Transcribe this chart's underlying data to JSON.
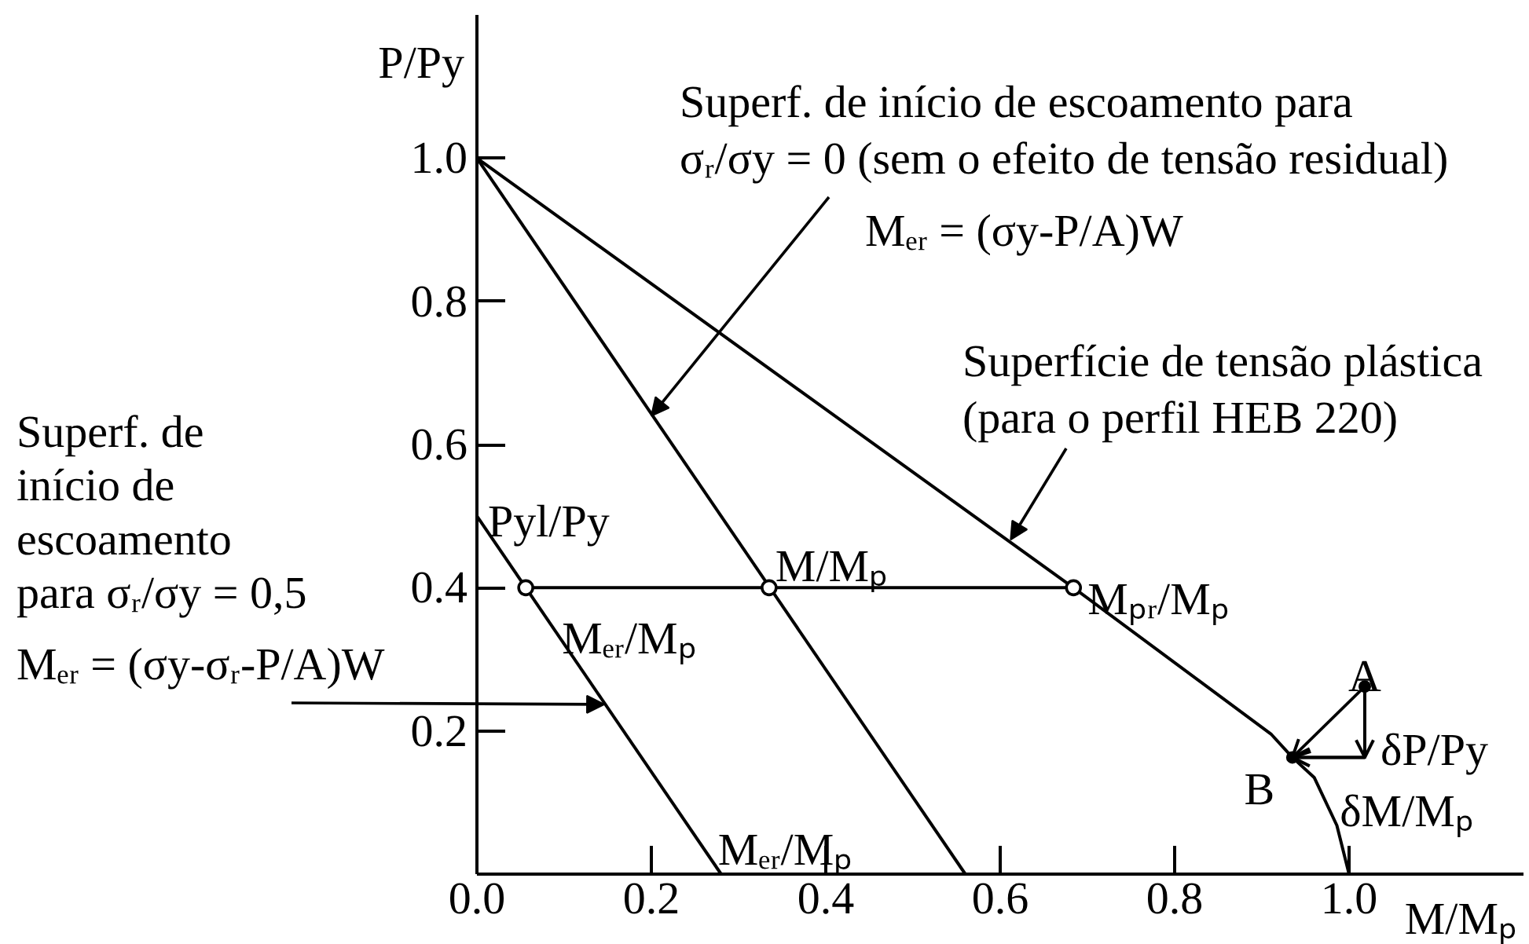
{
  "chart_data": {
    "type": "line",
    "xlabel": "M/Mₚ",
    "ylabel": "P/Py",
    "xlim": [
      0,
      1.2
    ],
    "ylim": [
      0,
      1.2
    ],
    "xticks": [
      {
        "value": 0,
        "label": "0.0"
      },
      0.2,
      0.4,
      0.6,
      0.8,
      {
        "value": 1,
        "label": "1.0"
      }
    ],
    "yticks": [
      0.2,
      0.4,
      0.6,
      0.8,
      {
        "value": 1,
        "label": "1.0"
      }
    ],
    "series": [
      {
        "color": "#000000",
        "x": [
          0,
          0.28
        ],
        "values": [
          0.5,
          0
        ]
      },
      {
        "color": "#000000",
        "x": [
          0,
          0.56
        ],
        "values": [
          1,
          0
        ]
      },
      {
        "color": "#000000",
        "x": [
          0,
          0.684,
          0.911,
          0.935,
          0.96,
          0.986,
          1.0
        ],
        "values": [
          1,
          0.4,
          0.195,
          0.163,
          0.135,
          0.068,
          0
        ]
      },
      {
        "color": "#000000",
        "x": [
          0.056,
          0.335,
          0.684
        ],
        "values": [
          0.4,
          0.4,
          0.4
        ],
        "marker": "circle"
      },
      {
        "color": "#000000",
        "x": [
          1.018,
          1.018,
          0.935
        ],
        "values": [
          0.262,
          0.163,
          0.163
        ]
      },
      {
        "type": "scatter",
        "color": "#000000",
        "x": [
          1.018,
          0.935
        ],
        "values": [
          0.262,
          0.163
        ],
        "marker": "circle"
      }
    ],
    "annotations": [
      {
        "text": "Superf. de início de escoamento para\nσᵣ/σy = 0 (sem o efeito de tensão residual)",
        "x": 0.2,
        "y": 0.64
      },
      "Mₑᵣ = (σy-P/A)W",
      {
        "text": "Superfície de tensão plástica\n(para o perfil HEB 220)",
        "x": 0.612,
        "y": 0.467
      },
      "Superf. de\ninício de\nescoamento\npara σᵣ/σy = 0,5",
      {
        "text": "Mₑᵣ = (σy-σᵣ-P/A)W",
        "x": 0.146,
        "y": 0.237
      },
      {
        "text": "Pyl/Py",
        "x": 0,
        "y": 0.5
      },
      {
        "text": "Mₑᵣ/Mₚ",
        "x": 0.056,
        "y": 0.4
      },
      {
        "text": "M/Mₚ",
        "x": 0.335,
        "y": 0.4
      },
      {
        "text": "Mₚᵣ/Mₚ",
        "x": 0.684,
        "y": 0.4
      },
      {
        "text": "Mₑᵣ/Mₚ",
        "x": 0.28,
        "y": 0
      },
      {
        "text": "A",
        "x": 1.018,
        "y": 0.262
      },
      {
        "text": "B",
        "x": 0.935,
        "y": 0.163
      },
      {
        "text": "δP/Py",
        "x": 1.018,
        "y": 0.21
      },
      {
        "text": "δM/Mₚ",
        "x": 0.975,
        "y": 0.163
      }
    ]
  }
}
